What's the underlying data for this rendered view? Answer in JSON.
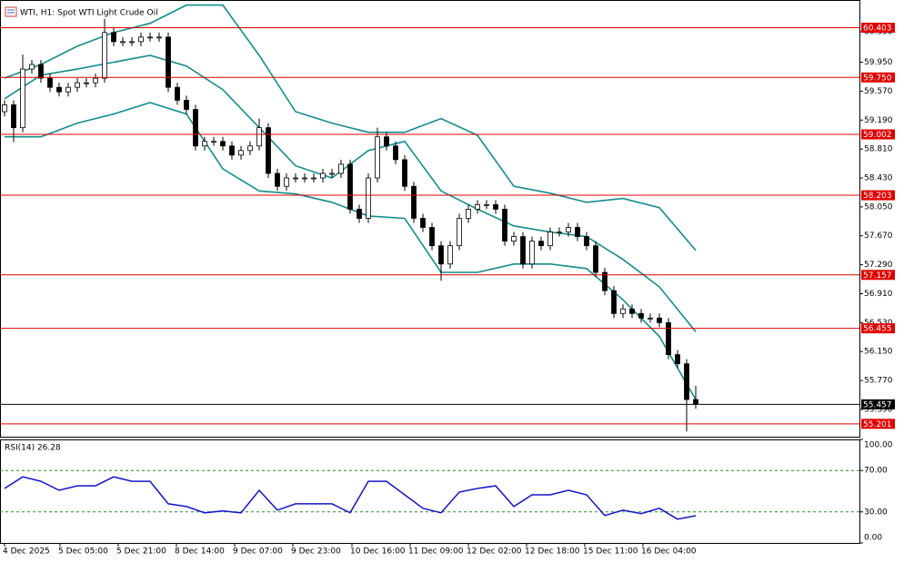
{
  "chart_data": [
    {
      "type": "candlestick",
      "title": "WTI, H1:  Spot WTI Light Crude Oil",
      "xlim": [
        -0.5,
        94
      ],
      "ylim": [
        55.032,
        60.755
      ],
      "xticks": [
        {
          "value": 0,
          "label": "4 Dec 2025"
        },
        {
          "value": 6.1,
          "label": "5 Dec 05:00"
        },
        {
          "value": 12.5,
          "label": "5 Dec 21:00"
        },
        {
          "value": 18.9,
          "label": "8 Dec 14:00"
        },
        {
          "value": 25.3,
          "label": "9 Dec 07:00"
        },
        {
          "value": 31.7,
          "label": "9 Dec 23:00"
        },
        {
          "value": 38.2,
          "label": "10 Dec 16:00"
        },
        {
          "value": 44.6,
          "label": "11 Dec 09:00"
        },
        {
          "value": 51,
          "label": "12 Dec 02:00"
        },
        {
          "value": 57.4,
          "label": "12 Dec 18:00"
        },
        {
          "value": 63.8,
          "label": "15 Dec 11:00"
        },
        {
          "value": 70.2,
          "label": "16 Dec 04:00"
        }
      ],
      "yticks": [
        {
          "value": 60.35,
          "label": "60.350"
        },
        {
          "value": 59.95,
          "label": "59.950"
        },
        {
          "value": 59.57,
          "label": "59.570"
        },
        {
          "value": 59.19,
          "label": "59.190"
        },
        {
          "value": 58.81,
          "label": "58.810"
        },
        {
          "value": 58.43,
          "label": "58.430"
        },
        {
          "value": 58.05,
          "label": "58.050"
        },
        {
          "value": 57.67,
          "label": "57.670"
        },
        {
          "value": 57.29,
          "label": "57.290"
        },
        {
          "value": 56.91,
          "label": "56.910"
        },
        {
          "value": 56.53,
          "label": "56.530"
        },
        {
          "value": 56.15,
          "label": "56.150"
        },
        {
          "value": 55.77,
          "label": "55.770"
        },
        {
          "value": 55.39,
          "label": "55.390"
        }
      ],
      "grid": false,
      "up_color": "#ffffff",
      "down_color": "#000000",
      "open": [
        59.3,
        59.39,
        59.09,
        59.86,
        59.92,
        59.74,
        59.62,
        59.56,
        59.62,
        59.68,
        59.68,
        59.74,
        60.34,
        60.22,
        60.22,
        60.22,
        60.28,
        60.28,
        60.28,
        59.62,
        59.45,
        59.33,
        58.85,
        58.91,
        58.91,
        58.85,
        58.73,
        58.79,
        58.85,
        59.09,
        58.49,
        58.32,
        58.43,
        58.43,
        58.43,
        58.43,
        58.49,
        58.49,
        58.61,
        58.02,
        57.9,
        58.43,
        58.97,
        58.85,
        58.67,
        58.32,
        57.9,
        57.78,
        57.54,
        57.3,
        57.54,
        57.9,
        58.02,
        58.08,
        58.08,
        58.02,
        57.6,
        57.66,
        57.3,
        57.6,
        57.54,
        57.72,
        57.72,
        57.78,
        57.66,
        57.54,
        57.19,
        56.95,
        56.65,
        56.71,
        56.65,
        56.59,
        56.59,
        56.53,
        56.11,
        55.99,
        55.52
      ],
      "high": [
        59.45,
        59.45,
        60.05,
        59.98,
        59.98,
        59.8,
        59.68,
        59.68,
        59.74,
        59.74,
        59.8,
        60.52,
        60.4,
        60.28,
        60.28,
        60.34,
        60.34,
        60.34,
        60.34,
        59.68,
        59.51,
        59.39,
        58.97,
        58.97,
        58.97,
        58.91,
        58.85,
        58.91,
        59.21,
        59.15,
        58.55,
        58.49,
        58.49,
        58.49,
        58.49,
        58.55,
        58.55,
        58.67,
        58.67,
        58.08,
        58.49,
        59.09,
        59.03,
        58.91,
        58.73,
        58.38,
        57.96,
        57.84,
        57.6,
        57.6,
        57.96,
        58.08,
        58.14,
        58.14,
        58.14,
        58.08,
        57.72,
        57.72,
        57.66,
        57.66,
        57.78,
        57.78,
        57.84,
        57.84,
        57.72,
        57.6,
        57.25,
        57.01,
        56.77,
        56.77,
        56.71,
        56.65,
        56.65,
        56.59,
        56.17,
        56.05,
        55.7
      ],
      "low": [
        59.24,
        58.9,
        59.03,
        59.8,
        59.68,
        59.56,
        59.5,
        59.5,
        59.56,
        59.62,
        59.62,
        59.68,
        60.16,
        60.16,
        60.16,
        60.16,
        60.22,
        60.22,
        59.56,
        59.39,
        59.27,
        58.79,
        58.79,
        58.85,
        58.79,
        58.67,
        58.67,
        58.73,
        58.79,
        58.43,
        58.26,
        58.26,
        58.37,
        58.37,
        58.37,
        58.37,
        58.43,
        58.43,
        57.96,
        57.84,
        57.84,
        58.37,
        58.79,
        58.61,
        58.26,
        57.84,
        57.72,
        57.48,
        57.08,
        57.24,
        57.48,
        57.84,
        57.96,
        58.02,
        57.96,
        57.54,
        57.54,
        57.24,
        57.24,
        57.48,
        57.48,
        57.66,
        57.66,
        57.6,
        57.48,
        57.13,
        56.89,
        56.59,
        56.59,
        56.59,
        56.53,
        56.53,
        56.47,
        56.05,
        55.93,
        55.1,
        55.4
      ],
      "close": [
        59.39,
        59.09,
        59.86,
        59.92,
        59.74,
        59.62,
        59.56,
        59.62,
        59.68,
        59.68,
        59.74,
        60.34,
        60.22,
        60.22,
        60.22,
        60.28,
        60.28,
        60.28,
        59.62,
        59.45,
        59.33,
        58.85,
        58.91,
        58.91,
        58.85,
        58.73,
        58.79,
        58.85,
        59.09,
        58.49,
        58.32,
        58.43,
        58.43,
        58.43,
        58.43,
        58.49,
        58.49,
        58.61,
        58.02,
        57.9,
        58.43,
        58.97,
        58.85,
        58.67,
        58.32,
        57.9,
        57.78,
        57.54,
        57.3,
        57.54,
        57.9,
        58.02,
        58.08,
        58.08,
        58.02,
        57.6,
        57.66,
        57.3,
        57.6,
        57.54,
        57.72,
        57.72,
        57.78,
        57.66,
        57.54,
        57.19,
        56.95,
        56.65,
        56.71,
        56.65,
        56.59,
        56.59,
        56.53,
        56.11,
        55.99,
        55.52,
        55.46
      ],
      "bands": {
        "color": "#148c8c",
        "x": [
          0,
          4,
          8,
          12,
          16,
          20,
          24,
          28,
          32,
          36,
          40,
          44,
          48,
          52,
          56,
          60,
          64,
          68,
          72,
          76
        ],
        "upper": [
          59.74,
          59.92,
          60.16,
          60.34,
          60.46,
          60.7,
          60.7,
          60.04,
          59.3,
          59.15,
          59.03,
          59.03,
          59.21,
          58.99,
          58.32,
          58.23,
          58.11,
          58.16,
          58.04,
          57.48
        ],
        "middle": [
          59.47,
          59.78,
          59.86,
          59.95,
          60.04,
          59.9,
          59.59,
          59.09,
          58.59,
          58.43,
          58.79,
          58.91,
          58.26,
          58.02,
          57.8,
          57.72,
          57.66,
          57.36,
          57.0,
          56.41
        ],
        "lower": [
          58.97,
          58.97,
          59.15,
          59.27,
          59.42,
          59.27,
          58.55,
          58.26,
          58.22,
          58.11,
          57.93,
          57.9,
          57.19,
          57.19,
          57.3,
          57.3,
          57.24,
          56.83,
          56.35,
          55.52
        ]
      },
      "levels": {
        "color": "#e00000",
        "values": [
          {
            "value": 60.403,
            "label": "60.403"
          },
          {
            "value": 59.75,
            "label": "59.750"
          },
          {
            "value": 59.002,
            "label": "59.002"
          },
          {
            "value": 58.203,
            "label": "58.203"
          },
          {
            "value": 57.157,
            "label": "57.157"
          },
          {
            "value": 56.455,
            "label": "56.455"
          },
          {
            "value": 55.201,
            "label": "55.201"
          }
        ]
      },
      "current_price": {
        "value": 55.457,
        "label": "55.457",
        "color": "#000000"
      }
    },
    {
      "type": "line",
      "title": "RSI(14) 26.28",
      "color": "#1414c8",
      "level_color": "#2a8a2a",
      "xlim": [
        -0.5,
        94
      ],
      "ylim": [
        0,
        100
      ],
      "yticks": [
        {
          "value": 100,
          "label": "100.00"
        },
        {
          "value": 70,
          "label": "70.00"
        },
        {
          "value": 30,
          "label": "30.00"
        },
        {
          "value": 0,
          "label": "0.00"
        }
      ],
      "levels": [
        70,
        30
      ],
      "x": [
        0,
        2,
        4,
        6,
        8,
        10,
        12,
        14,
        16,
        18,
        20,
        22,
        24,
        26,
        28,
        30,
        32,
        34,
        36,
        38,
        40,
        42,
        44,
        46,
        48,
        50,
        52,
        54,
        56,
        58,
        60,
        62,
        64,
        66,
        68,
        70,
        72,
        74,
        76
      ],
      "values": [
        52.6,
        63.9,
        59.6,
        50.9,
        55.2,
        55.2,
        63.9,
        59.6,
        59.6,
        37.8,
        35.2,
        29.1,
        30.9,
        29.1,
        50.9,
        31.7,
        37.8,
        37.8,
        37.8,
        29.1,
        59.6,
        59.6,
        46.5,
        33.5,
        29.1,
        49.1,
        52.6,
        55.2,
        35.2,
        46.5,
        46.5,
        50.9,
        46.5,
        26.5,
        31.7,
        28.3,
        33.5,
        23.0,
        26.28
      ]
    }
  ]
}
